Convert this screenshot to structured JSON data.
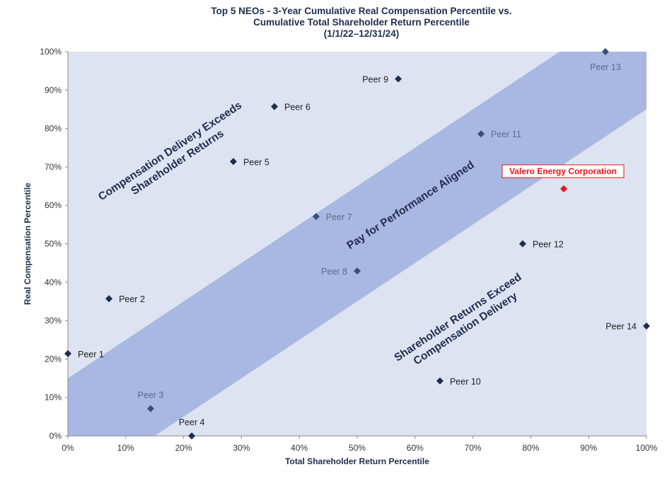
{
  "chart_data": {
    "type": "scatter",
    "title": [
      "Top 5 NEOs - 3-Year Cumulative Real Compensation Percentile vs.",
      "Cumulative Total Shareholder Return Percentile",
      "(1/1/22–12/31/24)"
    ],
    "xlabel": "Total Shareholder Return Percentile",
    "ylabel": "Real Compensation Percentile",
    "xlim": [
      0,
      100
    ],
    "ylim": [
      0,
      100
    ],
    "x_ticks": [
      "0%",
      "10%",
      "20%",
      "30%",
      "40%",
      "50%",
      "60%",
      "70%",
      "80%",
      "90%",
      "100%"
    ],
    "y_ticks": [
      "0%",
      "10%",
      "20%",
      "30%",
      "40%",
      "50%",
      "60%",
      "70%",
      "80%",
      "90%",
      "100%"
    ],
    "band": {
      "upper_intercept": 15,
      "lower_intercept": -15,
      "slope": 1
    },
    "region_labels": {
      "upper": [
        "Compensation Delivery Exceeds",
        "Shareholder Returns"
      ],
      "middle": "Pay for Performance Aligned",
      "lower": [
        "Shareholder Returns Exceed",
        "Compensation Delivery"
      ]
    },
    "colors": {
      "plot_bg": "#dde3f1",
      "band": "#a8b8e2",
      "peer_marker": "#1f2d4d",
      "highlight": "#e8141b"
    },
    "points": [
      {
        "name": "Peer 1",
        "x": 0,
        "y": 21.4,
        "label_pos": "right"
      },
      {
        "name": "Peer 2",
        "x": 7.1,
        "y": 35.7,
        "label_pos": "right"
      },
      {
        "name": "Peer 3",
        "x": 14.3,
        "y": 7.1,
        "label_pos": "above"
      },
      {
        "name": "Peer 4",
        "x": 21.4,
        "y": 0,
        "label_pos": "above"
      },
      {
        "name": "Peer 5",
        "x": 28.6,
        "y": 71.4,
        "label_pos": "right"
      },
      {
        "name": "Peer 6",
        "x": 35.7,
        "y": 85.7,
        "label_pos": "right"
      },
      {
        "name": "Peer 7",
        "x": 42.9,
        "y": 57.1,
        "label_pos": "right"
      },
      {
        "name": "Peer 8",
        "x": 50,
        "y": 42.9,
        "label_pos": "left"
      },
      {
        "name": "Peer 9",
        "x": 57.1,
        "y": 92.9,
        "label_pos": "left"
      },
      {
        "name": "Peer 10",
        "x": 64.3,
        "y": 14.3,
        "label_pos": "right"
      },
      {
        "name": "Peer 11",
        "x": 71.4,
        "y": 78.6,
        "label_pos": "right"
      },
      {
        "name": "Peer 12",
        "x": 78.6,
        "y": 50,
        "label_pos": "right"
      },
      {
        "name": "Peer 13",
        "x": 92.9,
        "y": 100,
        "label_pos": "below"
      },
      {
        "name": "Peer 14",
        "x": 100,
        "y": 28.6,
        "label_pos": "left"
      }
    ],
    "highlight_point": {
      "name": "Valero Energy Corporation",
      "x": 85.7,
      "y": 64.3
    }
  }
}
